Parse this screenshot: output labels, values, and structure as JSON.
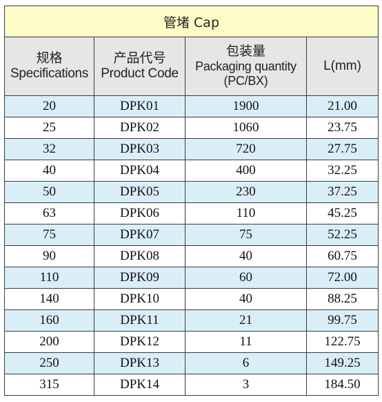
{
  "title": "管堵 Cap",
  "headers": [
    {
      "zh": "规格",
      "en": "Specifications"
    },
    {
      "zh": "产品代号",
      "en": "Product Code"
    },
    {
      "zh": "包装量",
      "en": "Packaging quantity",
      "en2": "(PC/BX)"
    },
    {
      "en": "L(mm)"
    }
  ],
  "rows": [
    {
      "spec": "20",
      "code": "DPK01",
      "qty": "1900",
      "length": "21.00"
    },
    {
      "spec": "25",
      "code": "DPK02",
      "qty": "1060",
      "length": "23.75"
    },
    {
      "spec": "32",
      "code": "DPK03",
      "qty": "720",
      "length": "27.75"
    },
    {
      "spec": "40",
      "code": "DPK04",
      "qty": "400",
      "length": "32.25"
    },
    {
      "spec": "50",
      "code": "DPK05",
      "qty": "230",
      "length": "37.25"
    },
    {
      "spec": "63",
      "code": "DPK06",
      "qty": "110",
      "length": "45.25"
    },
    {
      "spec": "75",
      "code": "DPK07",
      "qty": "75",
      "length": "52.25"
    },
    {
      "spec": "90",
      "code": "DPK08",
      "qty": "40",
      "length": "60.75"
    },
    {
      "spec": "110",
      "code": "DPK09",
      "qty": "60",
      "length": "72.00"
    },
    {
      "spec": "140",
      "code": "DPK10",
      "qty": "40",
      "length": "88.25"
    },
    {
      "spec": "160",
      "code": "DPK11",
      "qty": "21",
      "length": "99.75"
    },
    {
      "spec": "200",
      "code": "DPK12",
      "qty": "11",
      "length": "122.75"
    },
    {
      "spec": "250",
      "code": "DPK13",
      "qty": "6",
      "length": "149.25"
    },
    {
      "spec": "315",
      "code": "DPK14",
      "qty": "3",
      "length": "184.50"
    }
  ],
  "colors": {
    "title_bg": "#fefcc6",
    "header_bg": "#e6e6e6",
    "row_blue": "#daeefa",
    "row_white": "#ffffff",
    "border": "#3a3a3a"
  }
}
